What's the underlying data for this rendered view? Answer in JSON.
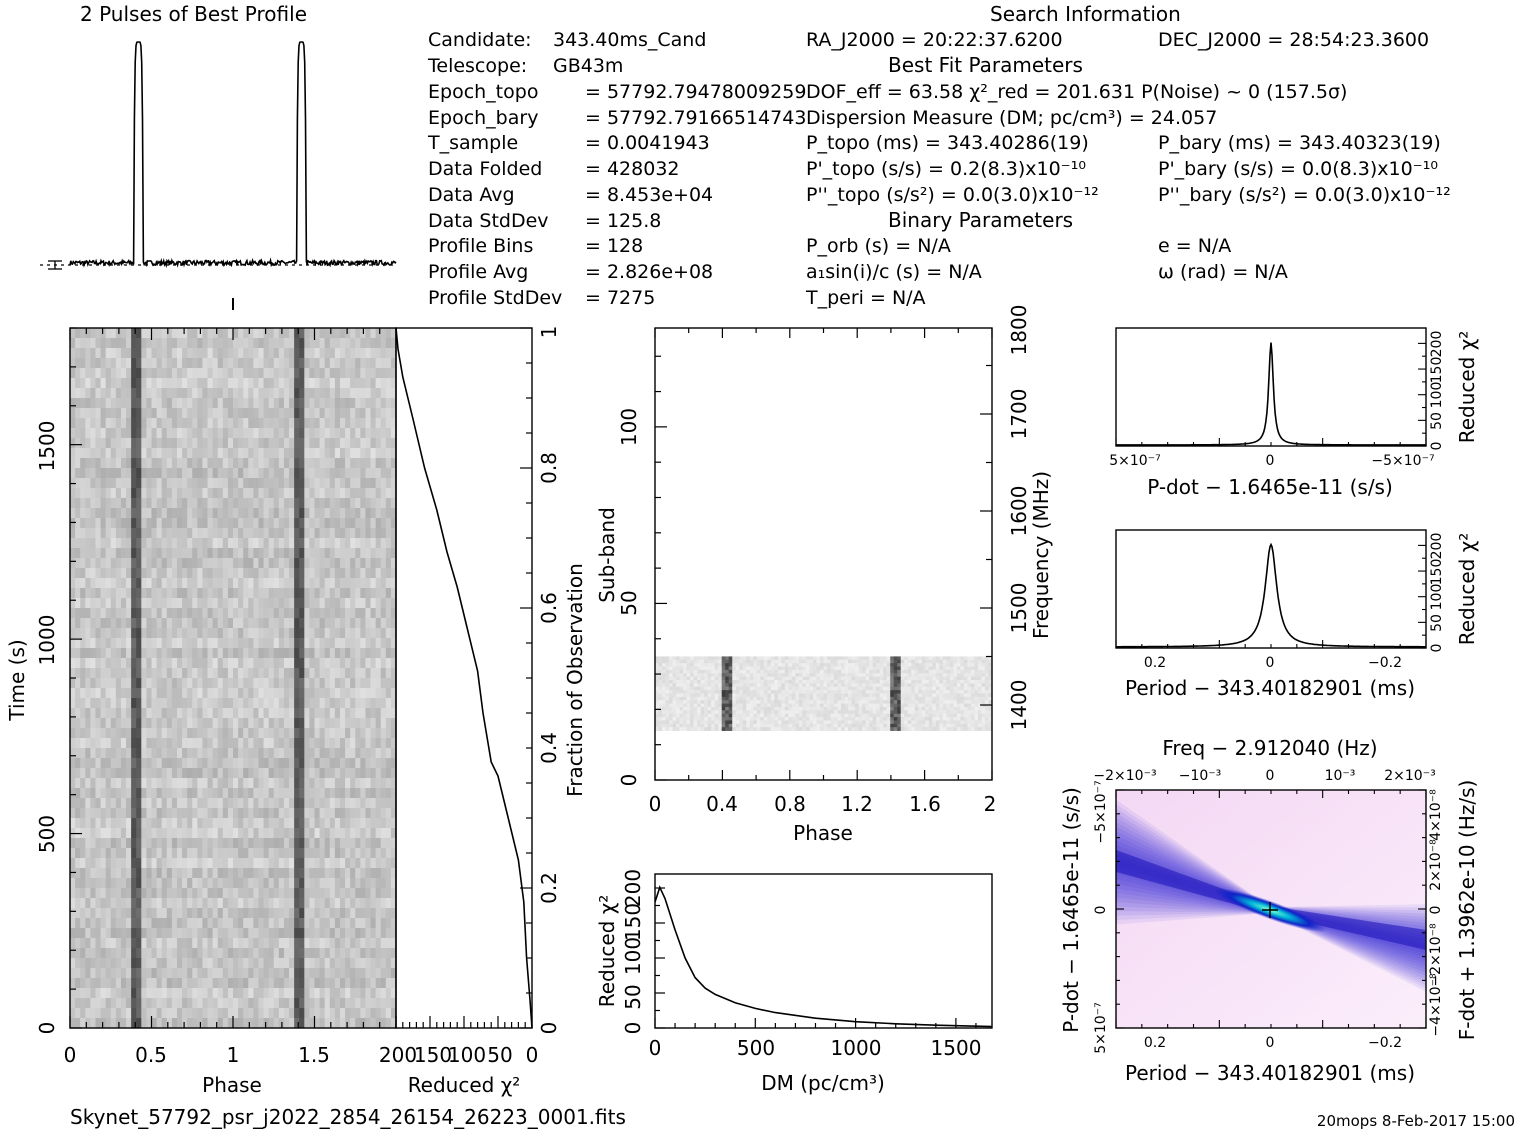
{
  "header": {
    "profile_title": "2 Pulses of Best Profile",
    "search_title": "Search Information",
    "best_fit_title": "Best Fit Parameters",
    "binary_title": "Binary Parameters"
  },
  "info_left": [
    {
      "label": "Candidate:",
      "value": "343.40ms_Cand"
    },
    {
      "label": "Telescope:",
      "value": "GB43m"
    },
    {
      "label": "Epoch_topo",
      "value": "= 57792.79478009259"
    },
    {
      "label": "Epoch_bary",
      "value": "= 57792.79166514743"
    },
    {
      "label": "T_sample",
      "value": "=   0.0041943"
    },
    {
      "label": "Data Folded",
      "value": "=   428032"
    },
    {
      "label": "Data Avg",
      "value": "=   8.453e+04"
    },
    {
      "label": "Data StdDev",
      "value": "=   125.8"
    },
    {
      "label": "Profile Bins",
      "value": "=   128"
    },
    {
      "label": "Profile Avg",
      "value": "=   2.826e+08"
    },
    {
      "label": "Profile StdDev",
      "value": "=   7275"
    }
  ],
  "info_right": {
    "ra": "RA_J2000 = 20:22:37.6200",
    "dec": "DEC_J2000 = 28:54:23.3600",
    "dof": "DOF_eff = 63.58   χ²_red = 201.631   P(Noise) ~ 0    (157.5σ)",
    "dm": "Dispersion Measure (DM; pc/cm³) = 24.057",
    "p_topo": "P_topo (ms) =  343.40286(19)",
    "p_bary": "P_bary (ms) =  343.40323(19)",
    "pd_topo": "P'_topo (s/s) =  0.2(8.3)x10⁻¹⁰",
    "pd_bary": "P'_bary (s/s) = 0.0(8.3)x10⁻¹⁰",
    "pdd_topo": "P''_topo (s/s²) = 0.0(3.0)x10⁻¹²",
    "pdd_bary": "P''_bary (s/s²) = 0.0(3.0)x10⁻¹²",
    "p_orb": "P_orb (s) = N/A",
    "ecc": "e = N/A",
    "a1sini": "a₁sin(i)/c (s) = N/A",
    "omega": "ω (rad) = N/A",
    "t_peri": "T_peri = N/A"
  },
  "footer": {
    "filename": "Skynet_57792_psr_j2022_2854_26154_26223_0001.fits",
    "stamp": "20mops   8-Feb-2017 15:00"
  },
  "chart_data": [
    {
      "name": "profile",
      "type": "line",
      "title": "2 Pulses of Best Profile",
      "x_range": [
        0,
        2
      ],
      "peaks_phase": [
        0.42,
        1.42
      ],
      "baseline_level": 0.04,
      "peak_level": 1.0
    },
    {
      "name": "time_vs_phase",
      "type": "heatmap",
      "xlabel": "Phase",
      "ylabel": "Time (s)",
      "xlim": [
        0,
        2
      ],
      "ylim": [
        0,
        1800
      ],
      "xticks": [
        "0",
        "0.5",
        "1",
        "1.5"
      ],
      "yticks": [
        "0",
        "500",
        "1000",
        "1500"
      ],
      "pulse_phases": [
        0.42,
        1.42
      ]
    },
    {
      "name": "chi2_vs_fraction",
      "type": "line",
      "xlabel": "Reduced χ²",
      "ylabel": "Fraction of Observation",
      "xlim": [
        200,
        0
      ],
      "ylim": [
        0,
        1
      ],
      "xticks": [
        "200",
        "150",
        "100",
        "50",
        "0"
      ],
      "yticks": [
        "0",
        "0.2",
        "0.4",
        "0.6",
        "0.8",
        "1"
      ],
      "x": [
        0,
        3,
        8,
        12,
        20,
        30,
        40,
        50,
        60,
        72,
        80,
        95,
        110,
        125,
        140,
        158,
        175,
        190,
        197,
        200
      ],
      "y": [
        0.0,
        0.04,
        0.1,
        0.18,
        0.24,
        0.28,
        0.32,
        0.36,
        0.38,
        0.45,
        0.51,
        0.57,
        0.63,
        0.68,
        0.74,
        0.8,
        0.87,
        0.93,
        0.97,
        1.0
      ]
    },
    {
      "name": "subband_vs_phase",
      "type": "heatmap",
      "xlabel": "Phase",
      "ylabel": "Sub-band",
      "y2label": "Frequency (MHz)",
      "xlim": [
        0,
        2
      ],
      "ylim": [
        0,
        128
      ],
      "xticks": [
        "0",
        "0.4",
        "0.8",
        "1.2",
        "1.6",
        "2"
      ],
      "yticks": [
        "0",
        "50",
        "100"
      ],
      "y2ticks": [
        "1400",
        "1500",
        "1600",
        "1700",
        "1800"
      ],
      "active_subbands": [
        14,
        35
      ],
      "pulse_phases": [
        0.42,
        1.42
      ]
    },
    {
      "name": "dm_curve",
      "type": "line",
      "xlabel": "DM (pc/cm³)",
      "ylabel": "Reduced χ²",
      "xlim": [
        0,
        1680
      ],
      "ylim": [
        0,
        220
      ],
      "xticks": [
        "0",
        "500",
        "1000",
        "1500"
      ],
      "yticks": [
        "0",
        "50",
        "100",
        "150",
        "200"
      ],
      "x": [
        0,
        24,
        50,
        100,
        150,
        200,
        250,
        300,
        400,
        500,
        600,
        800,
        1000,
        1200,
        1400,
        1680
      ],
      "y": [
        180,
        201,
        185,
        140,
        100,
        72,
        57,
        48,
        36,
        28,
        22,
        14,
        9,
        6,
        4,
        2
      ]
    },
    {
      "name": "pdot_chi2",
      "type": "line",
      "xlabel": "P-dot − 1.6465e-11 (s/s)",
      "ylabel": "Reduced χ²",
      "xticks": [
        "5×10⁻⁷",
        "0",
        "−5×10⁻⁷"
      ],
      "yticks": [
        "0",
        "50",
        "100",
        "150",
        "200"
      ],
      "ylim": [
        0,
        230
      ],
      "peak": 201.6
    },
    {
      "name": "period_chi2",
      "type": "line",
      "xlabel": "Period − 343.40182901 (ms)",
      "ylabel": "Reduced χ²",
      "xticks": [
        "0.2",
        "0",
        "−0.2"
      ],
      "yticks": [
        "0",
        "50",
        "100",
        "150",
        "200"
      ],
      "ylim": [
        0,
        230
      ],
      "peak": 201.6
    },
    {
      "name": "p_pdot_plane",
      "type": "heatmap",
      "title": "Freq − 2.912040 (Hz)",
      "xlabel": "Period − 343.40182901 (ms)",
      "ylabel": "P-dot − 1.6465e-11 (s/s)",
      "y2label": "F-dot + 1.3962e-10 (Hz/s)",
      "xticks": [
        "0.2",
        "0",
        "−0.2"
      ],
      "x2ticks": [
        "−2×10⁻³",
        "−10⁻³",
        "0",
        "10⁻³",
        "2×10⁻³"
      ],
      "yticks": [
        "5×10⁻⁷",
        "0",
        "−5×10⁻⁷"
      ],
      "y2ticks": [
        "−4×10⁻⁸",
        "−2×10⁻⁸",
        "0",
        "2×10⁻⁸",
        "4×10⁻⁸"
      ]
    }
  ]
}
